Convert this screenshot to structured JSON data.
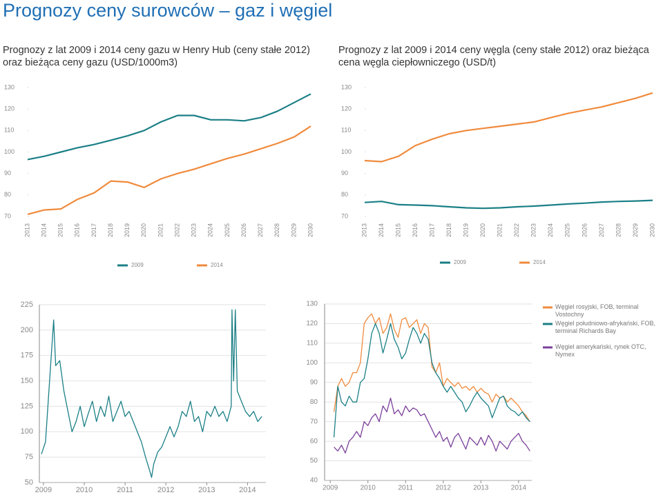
{
  "title": "Prognozy ceny surowców – gaz i węgiel",
  "chart_data": [
    {
      "type": "line",
      "title": "Prognozy z lat 2009 i 2014 ceny gazu w Henry Hub (ceny stałe 2012) oraz bieżąca ceny gazu (USD/1000m3)",
      "categories": [
        "2013",
        "2014",
        "2015",
        "2016",
        "2017",
        "2018",
        "2019",
        "2020",
        "2021",
        "2022",
        "2023",
        "2024",
        "2025",
        "2026",
        "2027",
        "2028",
        "2029",
        "2030"
      ],
      "series": [
        {
          "name": "2009",
          "color": "#1a7f86",
          "values": [
            96.5,
            98,
            100,
            102,
            103.5,
            105.5,
            107.5,
            110,
            114,
            117,
            117,
            115,
            115,
            114.5,
            116,
            119,
            123,
            127
          ]
        },
        {
          "name": "2014",
          "color": "#f08a3c",
          "values": [
            71,
            73,
            73.5,
            78,
            81,
            86.5,
            86,
            83.5,
            87.5,
            90,
            92,
            94.5,
            97,
            99,
            101.5,
            104,
            107,
            112
          ]
        }
      ],
      "ylim": [
        70,
        130
      ],
      "yticks": [
        70,
        80,
        90,
        100,
        110,
        120,
        130
      ],
      "grid": false,
      "legend": "bottom"
    },
    {
      "type": "line",
      "title": "Prognozy z lat 2009 i 2014 ceny węgla (ceny stałe 2012) oraz bieżąca cena węgla ciepłowniczego (USD/t)",
      "categories": [
        "2013",
        "2014",
        "2015",
        "2016",
        "2017",
        "2018",
        "2019",
        "2020",
        "2021",
        "2022",
        "2023",
        "2024",
        "2025",
        "2026",
        "2027",
        "2028",
        "2029",
        "2030"
      ],
      "series": [
        {
          "name": "2009",
          "color": "#1a7f86",
          "values": [
            76.5,
            77,
            75.5,
            75.3,
            75,
            74.5,
            74,
            73.8,
            74,
            74.5,
            74.8,
            75.3,
            75.8,
            76.2,
            76.7,
            77,
            77.2,
            77.5
          ]
        },
        {
          "name": "2014",
          "color": "#f08a3c",
          "values": [
            96,
            95.5,
            98,
            103,
            106,
            108.5,
            110,
            111,
            112,
            113,
            114,
            116,
            118,
            119.5,
            121,
            123,
            125,
            127.5
          ]
        }
      ],
      "ylim": [
        70,
        130
      ],
      "yticks": [
        70,
        80,
        90,
        100,
        110,
        120,
        130
      ],
      "grid": false,
      "legend": "bottom"
    },
    {
      "type": "line",
      "x": [
        2008.95,
        2009.05,
        2009.15,
        2009.25,
        2009.3,
        2009.4,
        2009.5,
        2009.6,
        2009.7,
        2009.8,
        2009.9,
        2010.0,
        2010.1,
        2010.2,
        2010.3,
        2010.4,
        2010.5,
        2010.6,
        2010.7,
        2010.8,
        2010.9,
        2011.0,
        2011.1,
        2011.2,
        2011.3,
        2011.4,
        2011.5,
        2011.6,
        2011.65,
        2011.7,
        2011.8,
        2011.9,
        2012.0,
        2012.1,
        2012.2,
        2012.3,
        2012.4,
        2012.5,
        2012.6,
        2012.7,
        2012.8,
        2012.9,
        2013.0,
        2013.1,
        2013.2,
        2013.3,
        2013.4,
        2013.5,
        2013.6,
        2013.62,
        2013.66,
        2013.7,
        2013.75,
        2013.85,
        2013.95,
        2014.05,
        2014.15,
        2014.25,
        2014.35
      ],
      "series": [
        {
          "color": "#1a7f86",
          "values": [
            78,
            90,
            150,
            210,
            165,
            170,
            140,
            120,
            100,
            110,
            125,
            105,
            118,
            130,
            110,
            125,
            115,
            135,
            110,
            120,
            130,
            115,
            120,
            110,
            100,
            90,
            75,
            62,
            55,
            68,
            80,
            85,
            95,
            105,
            95,
            105,
            120,
            115,
            130,
            110,
            115,
            100,
            120,
            115,
            125,
            115,
            120,
            110,
            125,
            220,
            150,
            220,
            140,
            130,
            120,
            115,
            120,
            110,
            115
          ]
        }
      ],
      "xlim": [
        2008.9,
        2014.45
      ],
      "xticks": [
        2009,
        2010,
        2011,
        2012,
        2013,
        2014
      ],
      "ylim": [
        50,
        225
      ],
      "yticks": [
        50,
        75,
        100,
        125,
        150,
        175,
        200,
        225
      ],
      "grid": true
    },
    {
      "type": "line",
      "x": [
        2009.1,
        2009.2,
        2009.3,
        2009.4,
        2009.5,
        2009.6,
        2009.7,
        2009.8,
        2009.9,
        2010.0,
        2010.1,
        2010.2,
        2010.3,
        2010.4,
        2010.5,
        2010.6,
        2010.7,
        2010.8,
        2010.9,
        2011.0,
        2011.1,
        2011.2,
        2011.3,
        2011.4,
        2011.5,
        2011.6,
        2011.7,
        2011.8,
        2011.9,
        2012.0,
        2012.1,
        2012.2,
        2012.3,
        2012.4,
        2012.5,
        2012.6,
        2012.7,
        2012.8,
        2012.9,
        2013.0,
        2013.1,
        2013.2,
        2013.3,
        2013.4,
        2013.5,
        2013.6,
        2013.7,
        2013.8,
        2013.9,
        2014.0,
        2014.1,
        2014.2,
        2014.3
      ],
      "series": [
        {
          "name": "Węgiel rosyjski, FOB, terminal Vostochny",
          "color": "#f08a3c",
          "values": [
            75,
            88,
            92,
            88,
            90,
            95,
            95,
            100,
            120,
            123,
            125,
            120,
            123,
            115,
            118,
            125,
            117,
            113,
            122,
            123,
            118,
            120,
            122,
            115,
            120,
            118,
            98,
            95,
            100,
            88,
            92,
            90,
            88,
            90,
            87,
            88,
            86,
            88,
            85,
            87,
            85,
            84,
            80,
            84,
            82,
            83,
            80,
            82,
            80,
            78,
            75,
            73,
            70
          ]
        },
        {
          "name": "Węgiel południowo-afrykański, FOB, terminal Richards Bay",
          "color": "#1a7f86",
          "values": [
            62,
            88,
            80,
            78,
            83,
            80,
            80,
            90,
            92,
            102,
            115,
            120,
            115,
            105,
            112,
            120,
            112,
            108,
            102,
            105,
            112,
            118,
            115,
            110,
            115,
            112,
            100,
            95,
            92,
            88,
            85,
            88,
            85,
            82,
            80,
            75,
            78,
            82,
            85,
            82,
            80,
            78,
            72,
            77,
            82,
            83,
            78,
            76,
            75,
            73,
            75,
            72,
            70
          ]
        },
        {
          "name": "Węgiel amerykański, rynek OTC, Nymex",
          "color": "#7a3f9a",
          "values": [
            57,
            55,
            58,
            54,
            60,
            62,
            65,
            62,
            70,
            68,
            72,
            74,
            70,
            78,
            75,
            82,
            74,
            76,
            73,
            78,
            75,
            77,
            76,
            73,
            74,
            70,
            66,
            62,
            65,
            60,
            62,
            57,
            62,
            64,
            60,
            56,
            62,
            60,
            58,
            62,
            58,
            63,
            60,
            55,
            60,
            58,
            56,
            60,
            62,
            64,
            60,
            58,
            55
          ]
        }
      ],
      "xlim": [
        2008.85,
        2014.35
      ],
      "xticks": [
        2009,
        2010,
        2011,
        2012,
        2013,
        2014
      ],
      "ylim": [
        40,
        130
      ],
      "yticks": [
        40,
        50,
        60,
        70,
        80,
        90,
        100,
        110,
        120,
        130
      ],
      "grid": true,
      "legend": "right"
    }
  ]
}
